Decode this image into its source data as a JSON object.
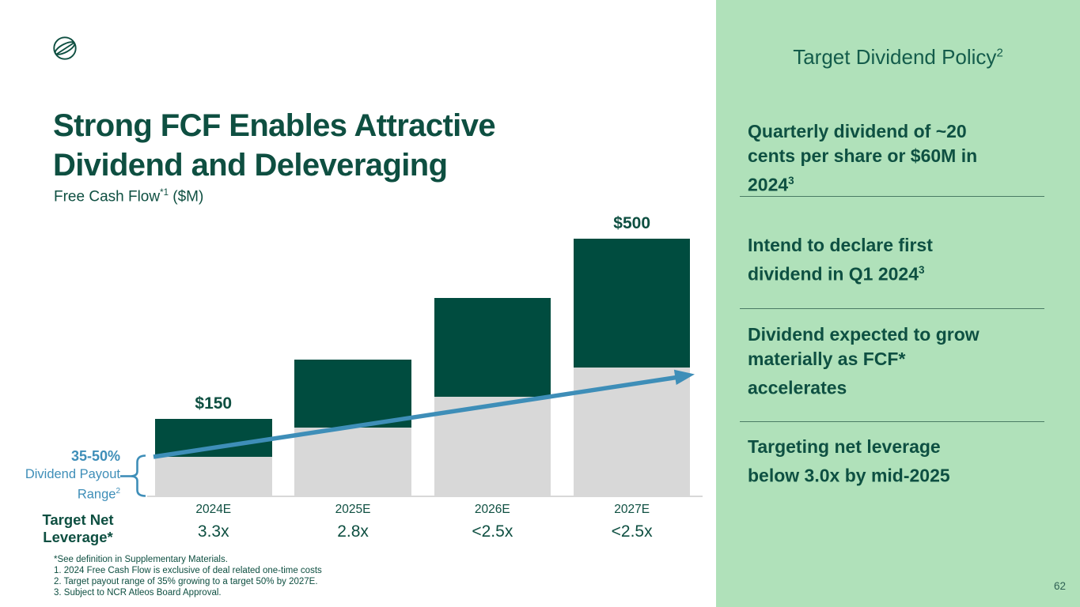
{
  "page": {
    "number": "62"
  },
  "header": {
    "title": "Strong FCF Enables Attractive\nDividend and Deleveraging",
    "subtitle_pre": "Free Cash Flow",
    "subtitle_sup": "*1",
    "subtitle_post": " ($M)"
  },
  "chart_data": {
    "type": "bar",
    "stacked": true,
    "title": "Free Cash Flow ($M)",
    "categories": [
      "2024E",
      "2025E",
      "2026E",
      "2027E"
    ],
    "series": [
      {
        "name": "Dividend payout range (gray segment)",
        "color": "#d8d8d8",
        "values": [
          75,
          133,
          192,
          250
        ]
      },
      {
        "name": "Remaining free cash flow (green segment)",
        "color": "#004c3f",
        "values": [
          75,
          132,
          193,
          250
        ]
      }
    ],
    "totals": [
      150,
      265,
      385,
      500
    ],
    "data_labels": [
      "$150",
      "",
      "",
      "$500"
    ],
    "leverage_row": {
      "label": "Target Net\nLeverage*",
      "values": [
        "3.3x",
        "2.8x",
        "<2.5x",
        "<2.5x"
      ]
    },
    "annotations": {
      "payout_pct": "35-50%",
      "payout_line1": "Dividend Payout",
      "payout_range_pre": "Range",
      "payout_range_sup": "2",
      "trend_arrow": "blue arrow rising from 2024E payout level to 2027E payout level"
    },
    "axes": {
      "x_axis_line": true,
      "y_axis": false,
      "gridlines": false
    },
    "legend": "none"
  },
  "footnotes": [
    "*See definition in Supplementary Materials.",
    "1.  2024 Free Cash Flow is exclusive of deal related one-time costs",
    "2. Target payout range of 35% growing to a target 50% by 2027E.",
    "3. Subject to NCR Atleos Board Approval."
  ],
  "panel": {
    "heading_pre": "Target Dividend Policy",
    "heading_sup": "2",
    "bullets": [
      {
        "text": "Quarterly dividend of ~20\ncents per share or $60M in\n2024",
        "sup": "3"
      },
      {
        "text": "Intend to declare first\ndividend in Q1 2024",
        "sup": "3"
      },
      {
        "text": "Dividend expected to grow\nmaterially as FCF*\naccelerates",
        "sup": ""
      },
      {
        "text": "Targeting net leverage\nbelow 3.0x by mid-2025",
        "sup": ""
      }
    ]
  },
  "icons": {
    "logo": "globe-icon"
  },
  "colors": {
    "bar_green": "#004c3f",
    "text_green": "#0e4f41",
    "panel_green": "#b0e1ba",
    "bar_gray": "#d8d8d8",
    "accent_blue": "#3e8eb8",
    "divider_green": "#4a7b64"
  }
}
